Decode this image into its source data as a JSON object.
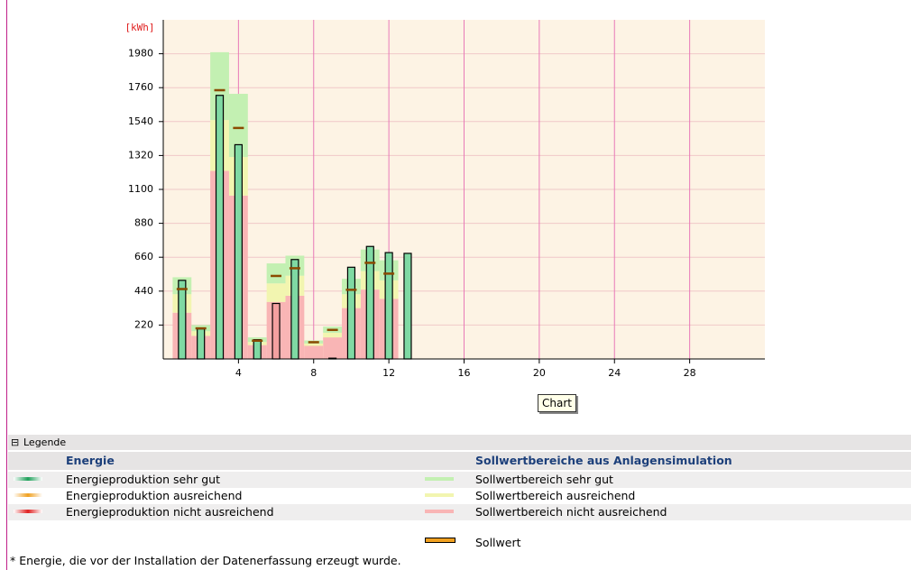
{
  "chart_data": {
    "type": "bar",
    "y_label": "[kWh]",
    "x": [
      1,
      2,
      3,
      4,
      5,
      6,
      7,
      8,
      9,
      10,
      11,
      12,
      13
    ],
    "xlim": [
      0,
      32
    ],
    "xticks": [
      4,
      8,
      12,
      16,
      20,
      24,
      28
    ],
    "ylim": [
      0,
      2200
    ],
    "yticks": [
      220,
      440,
      660,
      880,
      1100,
      1320,
      1540,
      1760,
      1980
    ],
    "grid": true,
    "series": [
      {
        "role": "bar",
        "color": "#7fd9a3",
        "colors": [
          "#7fd9a3",
          "#7fd9a3",
          "#7fd9a3",
          "#7fd9a3",
          "#7fd9a3",
          "#f4a0a0",
          "#7fd9a3",
          "#7fd9a3",
          "#7fd9a3",
          "#7fd9a3",
          "#7fd9a3",
          "#7fd9a3",
          "#7fd9a3"
        ],
        "values": [
          510,
          195,
          1710,
          1390,
          125,
          360,
          645,
          null,
          5,
          595,
          730,
          690,
          685
        ]
      },
      {
        "role": "range",
        "name": "Sollwertbereich nicht ausreichend",
        "color": "#f9b5b5",
        "values": [
          300,
          150,
          1220,
          1060,
          90,
          370,
          410,
          85,
          140,
          330,
          450,
          390,
          null
        ]
      },
      {
        "role": "range",
        "name": "Sollwertbereich ausreichend",
        "color": "#f2f5b0",
        "values": [
          120,
          30,
          330,
          250,
          20,
          120,
          130,
          15,
          30,
          90,
          120,
          120,
          null
        ]
      },
      {
        "role": "range",
        "name": "Sollwertbereich sehr gut",
        "color": "#c3f0b2",
        "values": [
          110,
          40,
          440,
          410,
          30,
          130,
          130,
          20,
          40,
          100,
          140,
          130,
          null
        ]
      },
      {
        "role": "target",
        "name": "Sollwert",
        "color": "#8b4a00",
        "values": [
          455,
          200,
          1745,
          1500,
          120,
          540,
          590,
          110,
          190,
          450,
          625,
          555,
          null
        ]
      }
    ]
  },
  "tooltip": "Chart",
  "legend": {
    "title": "Legende",
    "left_header": "Energie",
    "right_header": "Sollwertbereiche aus Anlagensimulation",
    "energy": [
      "Energieproduktion sehr gut",
      "Energieproduktion ausreichend",
      "Energieproduktion nicht ausreichend"
    ]
  },
  "footnote": "* Energie, die vor der Installation der Datenerfassung erzeugt wurde."
}
